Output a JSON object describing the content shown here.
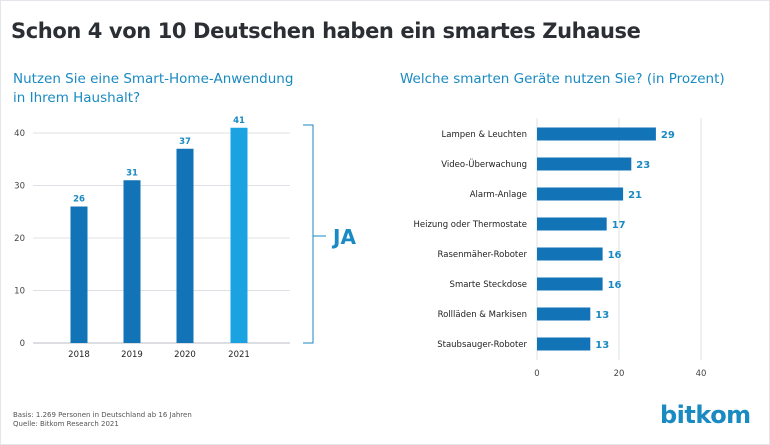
{
  "title": "Schon 4 von 10 Deutschen haben ein smartes Zuhause",
  "left_subtitle_line1": "Nutzen Sie eine Smart-Home-Anwendung",
  "left_subtitle_line2": "in Ihrem Haushalt?",
  "right_subtitle": "Welche smarten Geräte nutzen Sie? (in Prozent)",
  "ja_label": "JA",
  "footnote_line1": "Basis: 1.269 Personen in Deutschland ab 16 Jahren",
  "footnote_line2": "Quelle: Bitkom Research 2021",
  "logo": "bitkom",
  "colors": {
    "bar_dark": "#1273b6",
    "bar_light": "#1aa3e0",
    "text_blue": "#1a8ac2",
    "grid": "#dde1e5",
    "axis_text": "#444444"
  },
  "chart_data": [
    {
      "type": "bar",
      "orientation": "vertical",
      "title": "Nutzen Sie eine Smart-Home-Anwendung in Ihrem Haushalt?",
      "categories": [
        "2018",
        "2019",
        "2020",
        "2021"
      ],
      "values": [
        26,
        31,
        37,
        41
      ],
      "value_labels": [
        "26",
        "31",
        "37",
        "41"
      ],
      "ylim": [
        0,
        45
      ],
      "yticks": [
        0,
        10,
        20,
        30,
        40
      ],
      "ytick_labels": [
        "0",
        "10",
        "20",
        "30",
        "40"
      ],
      "highlight_index": 3,
      "grid": true
    },
    {
      "type": "bar",
      "orientation": "horizontal",
      "title": "Welche smarten Geräte nutzen Sie? (in Prozent)",
      "categories": [
        "Lampen & Leuchten",
        "Video-Überwachung",
        "Alarm-Anlage",
        "Heizung oder Thermostate",
        "Rasenmäher-Roboter",
        "Smarte Steckdose",
        "Rollläden & Markisen",
        "Staubsauger-Roboter"
      ],
      "values": [
        29,
        23,
        21,
        17,
        16,
        16,
        13,
        13
      ],
      "value_labels": [
        "29",
        "23",
        "21",
        "17",
        "16",
        "16",
        "13",
        "13"
      ],
      "xlim": [
        0,
        40
      ],
      "xticks": [
        0,
        20,
        40
      ],
      "xtick_labels": [
        "0",
        "20",
        "40"
      ],
      "grid": true
    }
  ]
}
